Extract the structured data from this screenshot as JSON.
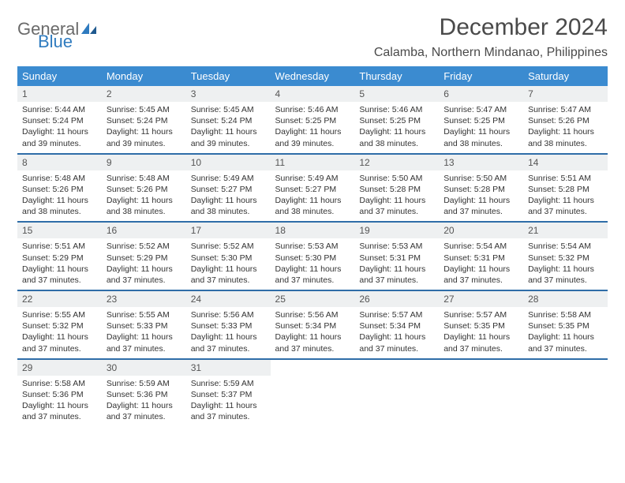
{
  "logo": {
    "part1": "General",
    "part2": "Blue"
  },
  "title": "December 2024",
  "location": "Calamba, Northern Mindanao, Philippines",
  "colors": {
    "header_bg": "#3b8bd0",
    "header_text": "#ffffff",
    "row_border": "#2f6da8",
    "daynum_bg": "#eef0f1",
    "text": "#333333",
    "logo_gray": "#6a6a6a",
    "logo_blue": "#2f7bbf"
  },
  "typography": {
    "title_fontsize": 30,
    "location_fontsize": 16,
    "dayheader_fontsize": 13,
    "daynum_fontsize": 12,
    "body_fontsize": 10.5
  },
  "day_headers": [
    "Sunday",
    "Monday",
    "Tuesday",
    "Wednesday",
    "Thursday",
    "Friday",
    "Saturday"
  ],
  "weeks": [
    [
      {
        "n": "1",
        "sunrise": "5:44 AM",
        "sunset": "5:24 PM",
        "daylight": "11 hours and 39 minutes."
      },
      {
        "n": "2",
        "sunrise": "5:45 AM",
        "sunset": "5:24 PM",
        "daylight": "11 hours and 39 minutes."
      },
      {
        "n": "3",
        "sunrise": "5:45 AM",
        "sunset": "5:24 PM",
        "daylight": "11 hours and 39 minutes."
      },
      {
        "n": "4",
        "sunrise": "5:46 AM",
        "sunset": "5:25 PM",
        "daylight": "11 hours and 39 minutes."
      },
      {
        "n": "5",
        "sunrise": "5:46 AM",
        "sunset": "5:25 PM",
        "daylight": "11 hours and 38 minutes."
      },
      {
        "n": "6",
        "sunrise": "5:47 AM",
        "sunset": "5:25 PM",
        "daylight": "11 hours and 38 minutes."
      },
      {
        "n": "7",
        "sunrise": "5:47 AM",
        "sunset": "5:26 PM",
        "daylight": "11 hours and 38 minutes."
      }
    ],
    [
      {
        "n": "8",
        "sunrise": "5:48 AM",
        "sunset": "5:26 PM",
        "daylight": "11 hours and 38 minutes."
      },
      {
        "n": "9",
        "sunrise": "5:48 AM",
        "sunset": "5:26 PM",
        "daylight": "11 hours and 38 minutes."
      },
      {
        "n": "10",
        "sunrise": "5:49 AM",
        "sunset": "5:27 PM",
        "daylight": "11 hours and 38 minutes."
      },
      {
        "n": "11",
        "sunrise": "5:49 AM",
        "sunset": "5:27 PM",
        "daylight": "11 hours and 38 minutes."
      },
      {
        "n": "12",
        "sunrise": "5:50 AM",
        "sunset": "5:28 PM",
        "daylight": "11 hours and 37 minutes."
      },
      {
        "n": "13",
        "sunrise": "5:50 AM",
        "sunset": "5:28 PM",
        "daylight": "11 hours and 37 minutes."
      },
      {
        "n": "14",
        "sunrise": "5:51 AM",
        "sunset": "5:28 PM",
        "daylight": "11 hours and 37 minutes."
      }
    ],
    [
      {
        "n": "15",
        "sunrise": "5:51 AM",
        "sunset": "5:29 PM",
        "daylight": "11 hours and 37 minutes."
      },
      {
        "n": "16",
        "sunrise": "5:52 AM",
        "sunset": "5:29 PM",
        "daylight": "11 hours and 37 minutes."
      },
      {
        "n": "17",
        "sunrise": "5:52 AM",
        "sunset": "5:30 PM",
        "daylight": "11 hours and 37 minutes."
      },
      {
        "n": "18",
        "sunrise": "5:53 AM",
        "sunset": "5:30 PM",
        "daylight": "11 hours and 37 minutes."
      },
      {
        "n": "19",
        "sunrise": "5:53 AM",
        "sunset": "5:31 PM",
        "daylight": "11 hours and 37 minutes."
      },
      {
        "n": "20",
        "sunrise": "5:54 AM",
        "sunset": "5:31 PM",
        "daylight": "11 hours and 37 minutes."
      },
      {
        "n": "21",
        "sunrise": "5:54 AM",
        "sunset": "5:32 PM",
        "daylight": "11 hours and 37 minutes."
      }
    ],
    [
      {
        "n": "22",
        "sunrise": "5:55 AM",
        "sunset": "5:32 PM",
        "daylight": "11 hours and 37 minutes."
      },
      {
        "n": "23",
        "sunrise": "5:55 AM",
        "sunset": "5:33 PM",
        "daylight": "11 hours and 37 minutes."
      },
      {
        "n": "24",
        "sunrise": "5:56 AM",
        "sunset": "5:33 PM",
        "daylight": "11 hours and 37 minutes."
      },
      {
        "n": "25",
        "sunrise": "5:56 AM",
        "sunset": "5:34 PM",
        "daylight": "11 hours and 37 minutes."
      },
      {
        "n": "26",
        "sunrise": "5:57 AM",
        "sunset": "5:34 PM",
        "daylight": "11 hours and 37 minutes."
      },
      {
        "n": "27",
        "sunrise": "5:57 AM",
        "sunset": "5:35 PM",
        "daylight": "11 hours and 37 minutes."
      },
      {
        "n": "28",
        "sunrise": "5:58 AM",
        "sunset": "5:35 PM",
        "daylight": "11 hours and 37 minutes."
      }
    ],
    [
      {
        "n": "29",
        "sunrise": "5:58 AM",
        "sunset": "5:36 PM",
        "daylight": "11 hours and 37 minutes."
      },
      {
        "n": "30",
        "sunrise": "5:59 AM",
        "sunset": "5:36 PM",
        "daylight": "11 hours and 37 minutes."
      },
      {
        "n": "31",
        "sunrise": "5:59 AM",
        "sunset": "5:37 PM",
        "daylight": "11 hours and 37 minutes."
      },
      null,
      null,
      null,
      null
    ]
  ],
  "labels": {
    "sunrise": "Sunrise:",
    "sunset": "Sunset:",
    "daylight": "Daylight:"
  }
}
